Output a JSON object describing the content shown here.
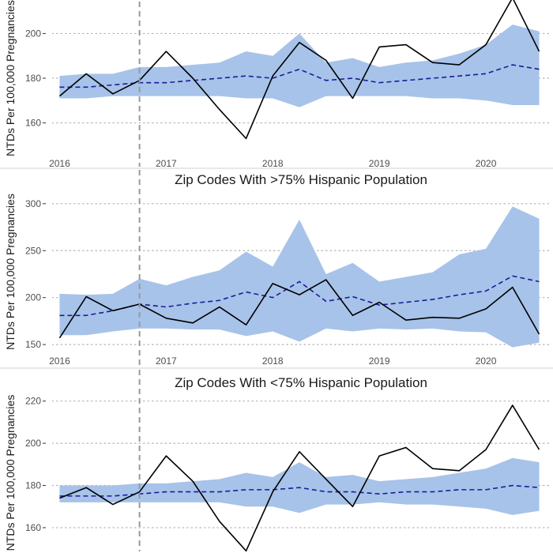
{
  "colors": {
    "band": "#a7c3e9",
    "expected": "#1c1c99",
    "observed": "#000000",
    "intervention": "#999999",
    "grid": "#b3b3b3",
    "divider": "#d0d0d0"
  },
  "chart_data": [
    {
      "type": "line",
      "title": "",
      "xlabel": "",
      "ylabel": "NTDs Per 100,000 Pregnancies",
      "xlim": [
        2015.93,
        2020.6
      ],
      "ylim": [
        145,
        215
      ],
      "yticks": [
        160,
        180,
        200
      ],
      "xticks": [
        2016,
        2017,
        2018,
        2019,
        2020
      ],
      "grid": true,
      "intervention_x": 2016.75,
      "x": [
        2016.0,
        2016.25,
        2016.5,
        2016.75,
        2017.0,
        2017.25,
        2017.5,
        2017.75,
        2018.0,
        2018.25,
        2018.5,
        2018.75,
        2019.0,
        2019.25,
        2019.5,
        2019.75,
        2020.0,
        2020.25,
        2020.5
      ],
      "series": [
        {
          "values": [
            172,
            182,
            173,
            179,
            192,
            180,
            166,
            153,
            181,
            196,
            188,
            171,
            194,
            195,
            187,
            186,
            195,
            216,
            192
          ]
        },
        {
          "values": [
            176,
            176,
            177,
            178,
            178,
            179,
            180,
            181,
            180,
            184,
            179,
            180,
            178,
            179,
            180,
            181,
            182,
            186,
            184
          ]
        }
      ],
      "band": {
        "upper": [
          181,
          182,
          182,
          185,
          185,
          186,
          187,
          192,
          190,
          200,
          187,
          189,
          185,
          187,
          188,
          191,
          195,
          204,
          201
        ],
        "lower": [
          171,
          171,
          172,
          172,
          172,
          172,
          172,
          171,
          171,
          167,
          172,
          172,
          172,
          172,
          171,
          171,
          170,
          168,
          168
        ]
      }
    },
    {
      "type": "line",
      "title": "Zip Codes With >75% Hispanic Population",
      "xlabel": "",
      "ylabel": "NTDs Per 100,000 Pregnancies",
      "xlim": [
        2015.93,
        2020.6
      ],
      "ylim": [
        140,
        315
      ],
      "yticks": [
        150,
        200,
        250,
        300
      ],
      "xticks": [
        2016,
        2017,
        2018,
        2019,
        2020
      ],
      "grid": true,
      "intervention_x": 2016.75,
      "x": [
        2016.0,
        2016.25,
        2016.5,
        2016.75,
        2017.0,
        2017.25,
        2017.5,
        2017.75,
        2018.0,
        2018.25,
        2018.5,
        2018.75,
        2019.0,
        2019.25,
        2019.5,
        2019.75,
        2020.0,
        2020.25,
        2020.5
      ],
      "series": [
        {
          "values": [
            157,
            201,
            186,
            193,
            178,
            173,
            190,
            171,
            215,
            203,
            219,
            181,
            195,
            176,
            179,
            178,
            188,
            211,
            161
          ]
        },
        {
          "values": [
            181,
            181,
            186,
            193,
            190,
            194,
            197,
            206,
            200,
            217,
            196,
            201,
            192,
            195,
            198,
            203,
            207,
            223,
            217
          ]
        }
      ],
      "band": {
        "upper": [
          204,
          203,
          204,
          220,
          213,
          222,
          229,
          249,
          233,
          283,
          225,
          237,
          217,
          222,
          227,
          246,
          252,
          297,
          284
        ],
        "lower": [
          160,
          160,
          164,
          167,
          167,
          166,
          166,
          159,
          164,
          153,
          167,
          164,
          167,
          166,
          167,
          164,
          163,
          147,
          152
        ]
      }
    },
    {
      "type": "line",
      "title": "Zip Codes With <75% Hispanic Population",
      "xlabel": "",
      "ylabel": "NTDs Per 100,000 Pregnancies",
      "xlim": [
        2015.93,
        2020.6
      ],
      "ylim": [
        148,
        224
      ],
      "yticks": [
        160,
        180,
        200,
        220
      ],
      "xticks": [],
      "grid": true,
      "intervention_x": 2016.75,
      "x": [
        2016.0,
        2016.25,
        2016.5,
        2016.75,
        2017.0,
        2017.25,
        2017.5,
        2017.75,
        2018.0,
        2018.25,
        2018.5,
        2018.75,
        2019.0,
        2019.25,
        2019.5,
        2019.75,
        2020.0,
        2020.25,
        2020.5
      ],
      "series": [
        {
          "values": [
            174,
            179,
            171,
            177,
            194,
            182,
            163,
            149,
            177,
            196,
            183,
            170,
            194,
            198,
            188,
            187,
            197,
            218,
            197
          ]
        },
        {
          "values": [
            175,
            175,
            175,
            176,
            177,
            177,
            177,
            178,
            178,
            179,
            177,
            177,
            176,
            177,
            177,
            178,
            178,
            180,
            179
          ]
        }
      ],
      "band": {
        "upper": [
          180,
          180,
          180,
          181,
          181,
          182,
          183,
          186,
          184,
          191,
          184,
          185,
          182,
          183,
          184,
          186,
          188,
          193,
          191
        ],
        "lower": [
          172,
          172,
          172,
          172,
          172,
          172,
          172,
          170,
          170,
          167,
          171,
          171,
          172,
          171,
          171,
          170,
          169,
          166,
          168
        ]
      }
    }
  ]
}
